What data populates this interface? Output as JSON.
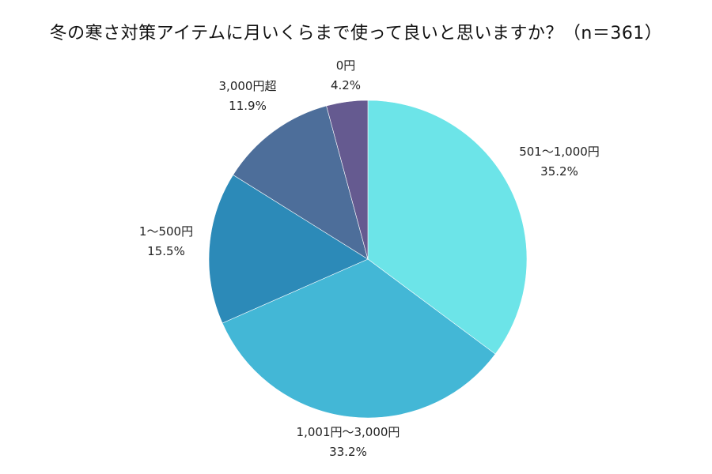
{
  "chart_data": {
    "type": "pie",
    "title": "冬の寒さ対策アイテムに月いくらまで使って良いと思いますか？（n＝361）",
    "slices": [
      {
        "label": "501〜1,000円",
        "value": 35.2,
        "value_label": "35.2%",
        "color": "#6ce4e8"
      },
      {
        "label": "1,001円〜3,000円",
        "value": 33.2,
        "value_label": "33.2%",
        "color": "#43b7d6"
      },
      {
        "label": "1〜500円",
        "value": 15.5,
        "value_label": "15.5%",
        "color": "#2c8ab8"
      },
      {
        "label": "3,000円超",
        "value": 11.9,
        "value_label": "11.9%",
        "color": "#4d6e9a"
      },
      {
        "label": "0円",
        "value": 4.2,
        "value_label": "4.2%",
        "color": "#655a90"
      }
    ],
    "start_angle": "12 o'clock",
    "direction": "clockwise",
    "legend": "none"
  }
}
